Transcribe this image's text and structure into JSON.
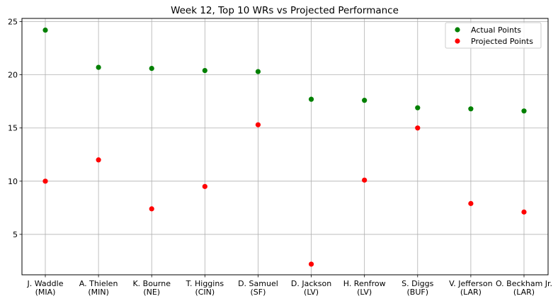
{
  "chart_data": {
    "type": "scatter",
    "title": "Week 12, Top 10 WRs vs Projected Performance",
    "xlabel": "",
    "ylabel": "",
    "categories": [
      [
        "J. Waddle",
        "(MIA)"
      ],
      [
        "A. Thielen",
        "(MIN)"
      ],
      [
        "K. Bourne",
        "(NE)"
      ],
      [
        "T. Higgins",
        "(CIN)"
      ],
      [
        "D. Samuel",
        "(SF)"
      ],
      [
        "D. Jackson",
        "(LV)"
      ],
      [
        "H. Renfrow",
        "(LV)"
      ],
      [
        "S. Diggs",
        "(BUF)"
      ],
      [
        "V. Jefferson",
        "(LAR)"
      ],
      [
        "O. Beckham Jr.",
        "(LAR)"
      ]
    ],
    "series": [
      {
        "name": "Actual Points",
        "color": "#008000",
        "values": [
          24.2,
          20.7,
          20.6,
          20.4,
          20.3,
          17.7,
          17.6,
          16.9,
          16.8,
          16.6
        ]
      },
      {
        "name": "Projected Points",
        "color": "#ff0000",
        "values": [
          10.0,
          12.0,
          7.4,
          9.5,
          15.3,
          2.2,
          10.1,
          15.0,
          7.9,
          7.1
        ]
      }
    ],
    "ylim": [
      1.2,
      25.3
    ],
    "yticks": [
      5,
      10,
      15,
      20,
      25
    ],
    "grid": true,
    "legend": "top-right"
  }
}
